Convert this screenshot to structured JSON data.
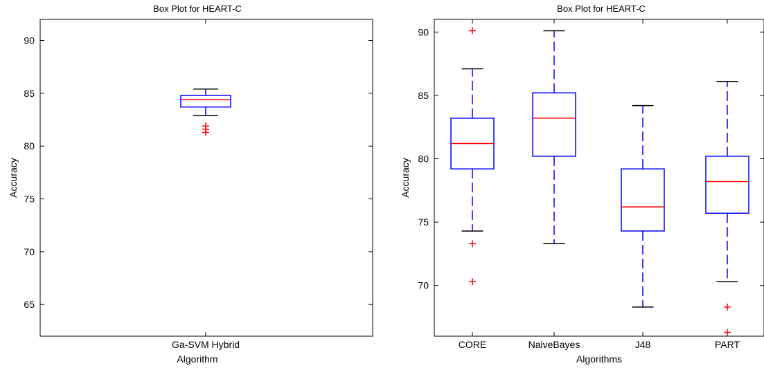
{
  "chart_data": [
    {
      "type": "box",
      "title": "Box Plot for HEART-C",
      "xlabel": "Algorithm",
      "ylabel": "Accuracy",
      "ylim": [
        62,
        92
      ],
      "yticks": [
        65,
        70,
        75,
        80,
        85,
        90
      ],
      "grid": false,
      "colors": {
        "box": "#0000ff",
        "median": "#ff0000",
        "whisker": "#0000ff",
        "cap": "#000000",
        "outlier": "#ff0000"
      },
      "categories": [
        "Ga-SVM Hybrid"
      ],
      "boxes": [
        {
          "q1": 83.7,
          "median": 84.4,
          "q3": 84.8,
          "whisker_low": 82.9,
          "whisker_high": 85.4,
          "outliers": [
            81.3,
            81.6,
            81.9
          ]
        }
      ]
    },
    {
      "type": "box",
      "title": "Box Plot for HEART-C",
      "xlabel": "Algorithms",
      "ylabel": "Accuracy",
      "ylim": [
        66,
        91
      ],
      "yticks": [
        70,
        75,
        80,
        85,
        90
      ],
      "grid": false,
      "colors": {
        "box": "#0000ff",
        "median": "#ff0000",
        "whisker": "#0000ff",
        "cap": "#000000",
        "outlier": "#ff0000"
      },
      "categories": [
        "CORE",
        "NaiveBayes",
        "J48",
        "PART"
      ],
      "boxes": [
        {
          "q1": 79.2,
          "median": 81.2,
          "q3": 83.2,
          "whisker_low": 74.3,
          "whisker_high": 87.1,
          "outliers": [
            73.3,
            70.3,
            90.1
          ]
        },
        {
          "q1": 80.2,
          "median": 83.2,
          "q3": 85.2,
          "whisker_low": 73.3,
          "whisker_high": 90.1,
          "outliers": []
        },
        {
          "q1": 74.3,
          "median": 76.2,
          "q3": 79.2,
          "whisker_low": 68.3,
          "whisker_high": 84.2,
          "outliers": []
        },
        {
          "q1": 75.7,
          "median": 78.2,
          "q3": 80.2,
          "whisker_low": 70.3,
          "whisker_high": 86.1,
          "outliers": [
            68.3,
            66.3
          ]
        }
      ]
    }
  ]
}
